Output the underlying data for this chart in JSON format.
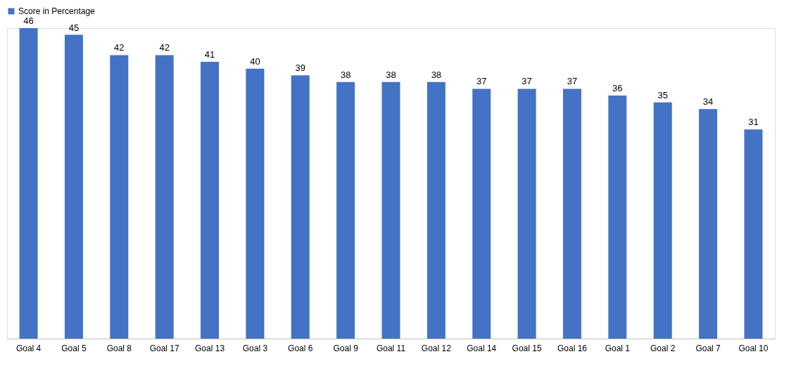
{
  "chart_data": {
    "type": "bar",
    "categories": [
      "Goal 4",
      "Goal 5",
      "Goal 8",
      "Goal 17",
      "Goal 13",
      "Goal 3",
      "Goal 6",
      "Goal 9",
      "Goal 11",
      "Goal 12",
      "Goal 14",
      "Goal 15",
      "Goal 16",
      "Goal 1",
      "Goal 2",
      "Goal 7",
      "Goal 10"
    ],
    "series": [
      {
        "name": "Score in Percentage",
        "color": "#4472c4",
        "values": [
          46,
          45,
          42,
          42,
          41,
          40,
          39,
          38,
          38,
          38,
          37,
          37,
          37,
          36,
          35,
          34,
          31
        ]
      }
    ],
    "data_labels": true,
    "legend": "top",
    "grid": false,
    "tick_labels": "x"
  }
}
